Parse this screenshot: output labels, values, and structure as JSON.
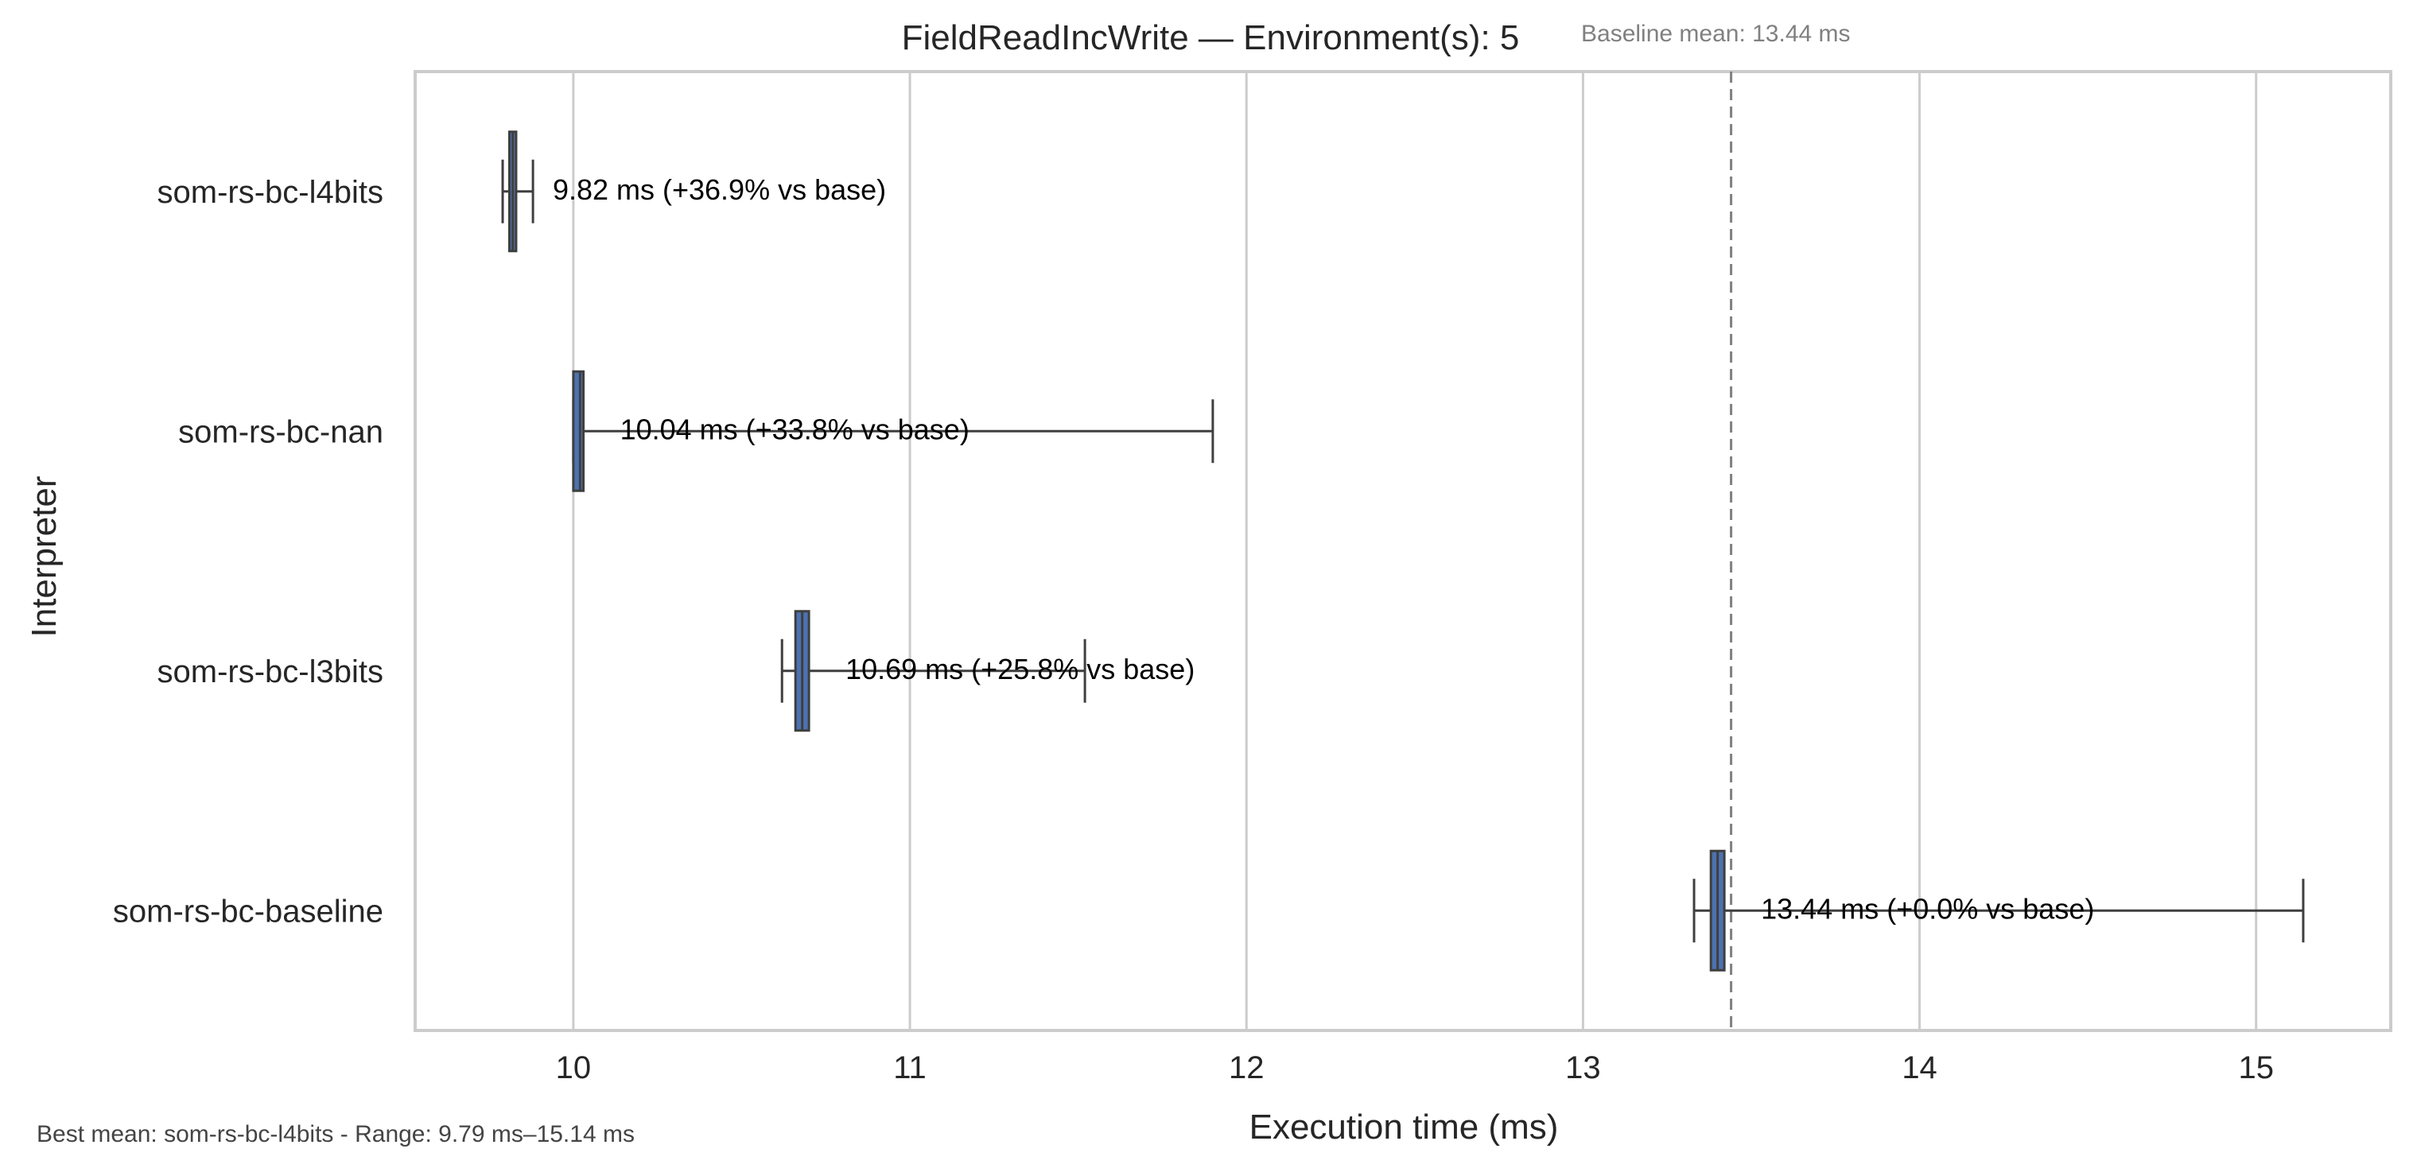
{
  "chart_data": {
    "type": "boxplot",
    "orientation": "horizontal",
    "title": "FieldReadIncWrite — Environment(s): 5",
    "xlabel": "Execution time (ms)",
    "ylabel": "Interpreter",
    "xlim": [
      9.53,
      15.4
    ],
    "xticks": [
      10,
      11,
      12,
      13,
      14,
      15
    ],
    "grid": "vertical",
    "categories": [
      "som-rs-bc-l4bits",
      "som-rs-bc-nan",
      "som-rs-bc-l3bits",
      "som-rs-bc-baseline"
    ],
    "boxes": [
      {
        "category": "som-rs-bc-l4bits",
        "whisker_low": 9.79,
        "q1": 9.81,
        "median": 9.82,
        "q3": 9.83,
        "whisker_high": 9.88,
        "mean": 9.82,
        "annotation": "9.82 ms  (+36.9% vs base)"
      },
      {
        "category": "som-rs-bc-nan",
        "whisker_low": 10.0,
        "q1": 10.0,
        "median": 10.02,
        "q3": 10.03,
        "whisker_high": 11.9,
        "mean": 10.04,
        "annotation": "10.04 ms  (+33.8% vs base)"
      },
      {
        "category": "som-rs-bc-l3bits",
        "whisker_low": 10.62,
        "q1": 10.66,
        "median": 10.68,
        "q3": 10.7,
        "whisker_high": 11.52,
        "mean": 10.69,
        "annotation": "10.69 ms  (+25.8% vs base)"
      },
      {
        "category": "som-rs-bc-baseline",
        "whisker_low": 13.33,
        "q1": 13.38,
        "median": 13.4,
        "q3": 13.42,
        "whisker_high": 15.14,
        "mean": 13.44,
        "annotation": "13.44 ms  (+0.0% vs base)"
      }
    ],
    "reference_line": {
      "x": 13.44,
      "label": "Baseline mean: 13.44 ms",
      "style": "dashed"
    },
    "footer": "Best mean: som-rs-bc-l4bits - Range: 9.79 ms–15.14 ms",
    "colors": {
      "box_fill": "#4c72b0",
      "box_edge": "#3f3f3f",
      "grid": "#cccccc",
      "axes_edge": "#cccccc",
      "reference_line": "#808080",
      "annotation_text": "#000000",
      "label_text": "#262626"
    }
  }
}
